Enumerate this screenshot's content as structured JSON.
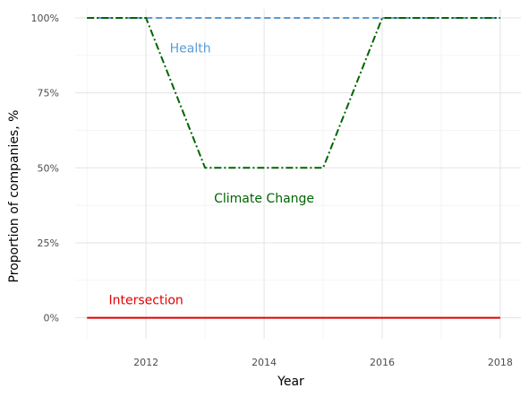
{
  "chart_data": {
    "type": "line",
    "title": "",
    "xlabel": "Year",
    "ylabel": "Proportion of companies, %",
    "x": [
      2011,
      2012,
      2013,
      2014,
      2015,
      2016,
      2017,
      2018
    ],
    "xlim": [
      2010.8,
      2018.35
    ],
    "ylim": [
      -7,
      103
    ],
    "x_ticks": [
      2012,
      2014,
      2016,
      2018
    ],
    "x_tick_labels": [
      "2012",
      "2014",
      "2016",
      "2018"
    ],
    "y_ticks": [
      0,
      25,
      50,
      75,
      100
    ],
    "y_tick_labels": [
      "0%",
      "25%",
      "50%",
      "75%",
      "100%"
    ],
    "grid": true,
    "legend": "none",
    "series": [
      {
        "name": "Health",
        "values": [
          100,
          100,
          100,
          100,
          100,
          100,
          100,
          100
        ],
        "color": "#5b9bd5",
        "style": "dashed",
        "label_at": [
          2012.75,
          88.5
        ]
      },
      {
        "name": "Climate Change",
        "values": [
          100,
          100,
          50,
          50,
          50,
          100,
          100,
          100
        ],
        "color": "#006400",
        "style": "dashdot",
        "label_at": [
          2014.0,
          38.5
        ]
      },
      {
        "name": "Intersection",
        "values": [
          0,
          0,
          0,
          0,
          0,
          0,
          0,
          0
        ],
        "color": "#e00000",
        "style": "solid",
        "label_at": [
          2012.0,
          4.5
        ]
      }
    ]
  }
}
